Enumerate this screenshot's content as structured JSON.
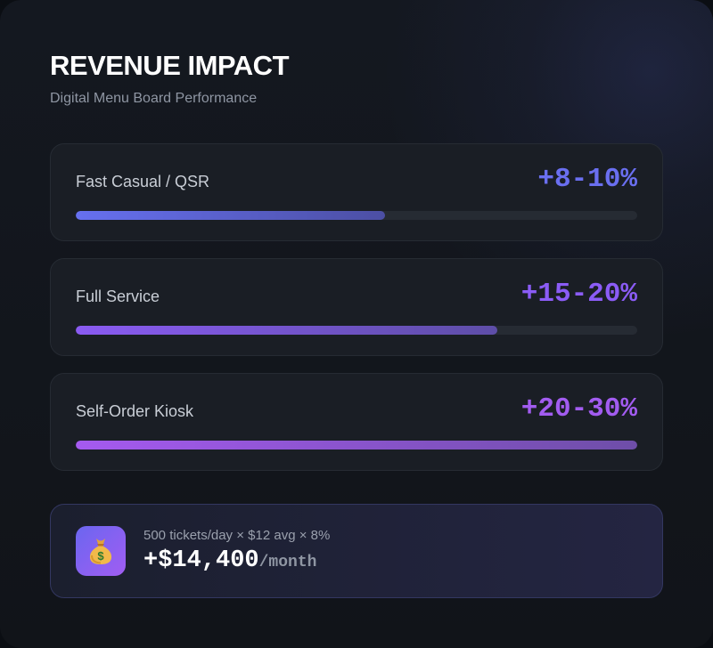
{
  "header": {
    "title": "REVENUE IMPACT",
    "subtitle": "Digital Menu Board Performance"
  },
  "metrics": [
    {
      "label": "Fast Casual / QSR",
      "value": "+8-10%",
      "bar_fill_pct": 55,
      "color": "#6a6ff0",
      "bar_from": "#6670f0",
      "bar_to": "#4c4fa4"
    },
    {
      "label": "Full Service",
      "value": "+15-20%",
      "bar_fill_pct": 75,
      "color": "#8b5cf6",
      "bar_from": "#8a5bf2",
      "bar_to": "#5e4ea8"
    },
    {
      "label": "Self-Order Kiosk",
      "value": "+20-30%",
      "bar_fill_pct": 100,
      "color": "#a25cf0",
      "bar_from": "#a55af0",
      "bar_to": "#6e4ea8"
    }
  ],
  "summary": {
    "icon": "money-bag-icon",
    "formula": "500 tickets/day × $12 avg × 8%",
    "amount": "+$14,400",
    "unit": "/month"
  }
}
